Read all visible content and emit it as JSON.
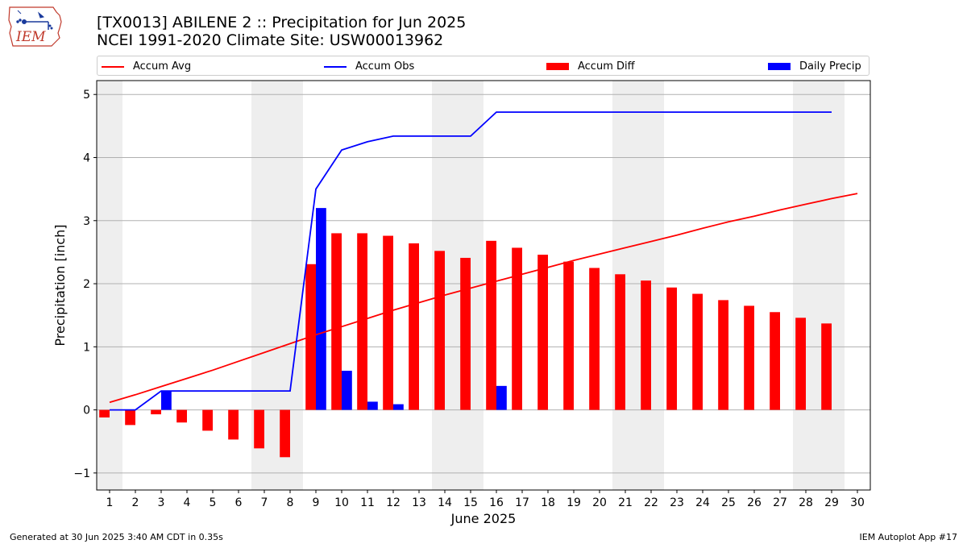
{
  "header": {
    "title_line1": "[TX0013] ABILENE 2 :: Precipitation for Jun 2025",
    "title_line2": "NCEI 1991-2020 Climate Site: USW00013962",
    "logo_text": "IEM"
  },
  "legend": {
    "items": [
      {
        "label": "Accum Avg",
        "color": "#ff0000",
        "kind": "line"
      },
      {
        "label": "Accum Obs",
        "color": "#0000ff",
        "kind": "line"
      },
      {
        "label": "Accum Diff",
        "color": "#ff0000",
        "kind": "box"
      },
      {
        "label": "Daily Precip",
        "color": "#0000ff",
        "kind": "box"
      }
    ]
  },
  "footer": {
    "left": "Generated at 30 Jun 2025 3:40 AM CDT in 0.35s",
    "right": "IEM Autoplot App #17"
  },
  "chart_data": {
    "type": "bar",
    "xlabel": "June 2025",
    "ylabel": "Precipitation [inch]",
    "ylim": [
      -1.27,
      5.22
    ],
    "yticks": [
      -1,
      0,
      1,
      2,
      3,
      4,
      5
    ],
    "days": [
      1,
      2,
      3,
      4,
      5,
      6,
      7,
      8,
      9,
      10,
      11,
      12,
      13,
      14,
      15,
      16,
      17,
      18,
      19,
      20,
      21,
      22,
      23,
      24,
      25,
      26,
      27,
      28,
      29,
      30
    ],
    "weekend_days": [
      1,
      7,
      8,
      14,
      15,
      21,
      22,
      28,
      29
    ],
    "grid": true,
    "series": [
      {
        "name": "Accum Avg",
        "type": "line",
        "color": "#ff0000",
        "values": [
          0.12,
          0.24,
          0.37,
          0.5,
          0.63,
          0.77,
          0.91,
          1.05,
          1.19,
          1.32,
          1.45,
          1.58,
          1.7,
          1.82,
          1.93,
          2.04,
          2.15,
          2.26,
          2.37,
          2.47,
          2.57,
          2.67,
          2.77,
          2.88,
          2.98,
          3.07,
          3.17,
          3.26,
          3.35,
          3.43
        ]
      },
      {
        "name": "Accum Obs",
        "type": "line",
        "color": "#0000ff",
        "values": [
          0.0,
          0.0,
          0.3,
          0.3,
          0.3,
          0.3,
          0.3,
          0.3,
          3.5,
          4.12,
          4.25,
          4.34,
          4.34,
          4.34,
          4.34,
          4.72,
          4.72,
          4.72,
          4.72,
          4.72,
          4.72,
          4.72,
          4.72,
          4.72,
          4.72,
          4.72,
          4.72,
          4.72,
          4.72
        ]
      },
      {
        "name": "Accum Diff",
        "type": "bar",
        "color": "#ff0000",
        "values": [
          -0.12,
          -0.24,
          -0.07,
          -0.2,
          -0.33,
          -0.47,
          -0.61,
          -0.75,
          2.31,
          2.8,
          2.8,
          2.76,
          2.64,
          2.52,
          2.41,
          2.68,
          2.57,
          2.46,
          2.35,
          2.25,
          2.15,
          2.05,
          1.94,
          1.84,
          1.74,
          1.65,
          1.55,
          1.46,
          1.37
        ]
      },
      {
        "name": "Daily Precip",
        "type": "bar",
        "color": "#0000ff",
        "values": [
          0.0,
          0.0,
          0.3,
          0.0,
          0.0,
          0.0,
          0.0,
          0.0,
          3.2,
          0.62,
          0.13,
          0.09,
          0.0,
          0.0,
          0.0,
          0.38,
          0.0,
          0.0,
          0.0,
          0.0,
          0.0,
          0.0,
          0.0,
          0.0,
          0.0,
          0.0,
          0.0,
          0.0,
          0.0
        ]
      }
    ]
  }
}
